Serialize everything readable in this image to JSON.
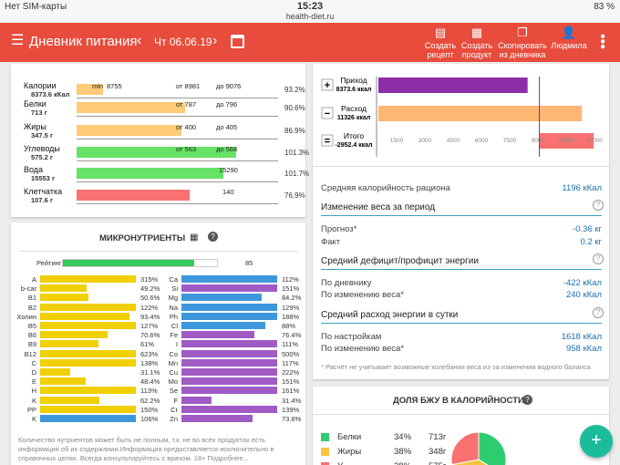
{
  "status": {
    "carrier": "Нет SIM-карты",
    "time": "15:23",
    "url": "health-diet.ru",
    "battery": "83 %"
  },
  "header": {
    "title": "Дневник питания",
    "date": "Чт 06.06.19",
    "actions": [
      "Создать рецепт",
      "Создать продукт",
      "Скопировать из дневника",
      "Людмила"
    ]
  },
  "nutrients": [
    {
      "name": "Калории",
      "value": "8373.6 кКал",
      "min": "min",
      "v1": "8755",
      "from": "от 8981",
      "to": "до 9076",
      "pct": "93.2%",
      "color": "#fdca77",
      "fill": 0.13
    },
    {
      "name": "Белки",
      "value": "713 г",
      "from": "от 787",
      "to": "до 796",
      "pct": "90.6%",
      "color": "#fdca77",
      "fill": 0.54
    },
    {
      "name": "Жиры",
      "value": "347.5 г",
      "from": "от 400",
      "to": "до 405",
      "pct": "86.9%",
      "color": "#fdca77",
      "fill": 0.52
    },
    {
      "name": "Углеводы",
      "value": "575.2 г",
      "from": "от 563",
      "to": "до 568",
      "pct": "101.3%",
      "color": "#66e366",
      "fill": 0.79
    },
    {
      "name": "Вода",
      "value": "15553 г",
      "v1": "15290",
      "pct": "101.7%",
      "color": "#66e366",
      "fill": 0.73
    },
    {
      "name": "Клетчатка",
      "value": "107.6 г",
      "v1": "140",
      "pct": "76.9%",
      "color": "#f97171",
      "fill": 0.56
    }
  ],
  "micro": {
    "title": "МИКРОНУТРИЕНТЫ",
    "rating_label": "Рейтинг",
    "rating": "85",
    "rating_fill": 0.85,
    "left": [
      {
        "n": "A",
        "p": "315%",
        "f": 1.0
      },
      {
        "n": "b-car",
        "p": "49.2%",
        "f": 0.49
      },
      {
        "n": "B1",
        "p": "50.6%",
        "f": 0.5
      },
      {
        "n": "B2",
        "p": "122%",
        "f": 1.0
      },
      {
        "n": "Холин",
        "p": "93.4%",
        "f": 0.93
      },
      {
        "n": "B5",
        "p": "127%",
        "f": 1.0
      },
      {
        "n": "B6",
        "p": "70.6%",
        "f": 0.7
      },
      {
        "n": "B9",
        "p": "61%",
        "f": 0.61
      },
      {
        "n": "B12",
        "p": "623%",
        "f": 1.0
      },
      {
        "n": "C",
        "p": "138%",
        "f": 1.0
      },
      {
        "n": "D",
        "p": "31.1%",
        "f": 0.31
      },
      {
        "n": "E",
        "p": "48.4%",
        "f": 0.48
      },
      {
        "n": "H",
        "p": "113%",
        "f": 1.0
      },
      {
        "n": "K",
        "p": "62.2%",
        "f": 0.62
      },
      {
        "n": "PP",
        "p": "150%",
        "f": 1.0
      },
      {
        "n": "K",
        "p": "106%",
        "f": 1.0,
        "blue": true
      }
    ],
    "right": [
      {
        "n": "Ca",
        "p": "112%",
        "f": 1.0,
        "c": "#3e97dc"
      },
      {
        "n": "Si",
        "p": "151%",
        "f": 1.0,
        "c": "#a05cc4"
      },
      {
        "n": "Mg",
        "p": "84.2%",
        "f": 0.84,
        "c": "#3e97dc"
      },
      {
        "n": "Na",
        "p": "129%",
        "f": 1.0,
        "c": "#3e97dc"
      },
      {
        "n": "Ph",
        "p": "188%",
        "f": 1.0,
        "c": "#3e97dc"
      },
      {
        "n": "Cl",
        "p": "88%",
        "f": 0.88,
        "c": "#3e97dc"
      },
      {
        "n": "Fe",
        "p": "76.4%",
        "f": 0.76,
        "c": "#a05cc4"
      },
      {
        "n": "I",
        "p": "111%",
        "f": 1.0,
        "c": "#a05cc4"
      },
      {
        "n": "Co",
        "p": "500%",
        "f": 1.0,
        "c": "#a05cc4"
      },
      {
        "n": "Mn",
        "p": "117%",
        "f": 1.0,
        "c": "#a05cc4"
      },
      {
        "n": "Cu",
        "p": "222%",
        "f": 1.0,
        "c": "#a05cc4"
      },
      {
        "n": "Mo",
        "p": "151%",
        "f": 1.0,
        "c": "#a05cc4"
      },
      {
        "n": "Se",
        "p": "161%",
        "f": 1.0,
        "c": "#a05cc4"
      },
      {
        "n": "F",
        "p": "31.4%",
        "f": 0.31,
        "c": "#a05cc4"
      },
      {
        "n": "Cr",
        "p": "139%",
        "f": 1.0,
        "c": "#a05cc4"
      },
      {
        "n": "Zn",
        "p": "73.8%",
        "f": 0.74,
        "c": "#a05cc4"
      }
    ],
    "note": "Количество нутриентов может быть не полным, т.к. не во всех продуктах есть информация об их содержании.Информация предоставляется исключительно в справочных целях. Всегда консультируйтесь с врачом. 18+ Подробнее..."
  },
  "balance": {
    "rows": [
      {
        "sign": "+",
        "label": "Приход",
        "value": "8373.6 ккал",
        "color": "#8e2da8",
        "fill": 0.66
      },
      {
        "sign": "−",
        "label": "Расход",
        "value": "11326 ккал",
        "color": "#fdb673",
        "fill": 0.9
      },
      {
        "sign": "=",
        "label": "Итого",
        "value": "-2952.4 ккал",
        "color": "#f97171",
        "fill": 0.24
      }
    ],
    "ticks": [
      "1500",
      "3000",
      "4500",
      "6000",
      "7500",
      "9000",
      "10500",
      "12000"
    ]
  },
  "stats": {
    "avg_label": "Средняя калорийность рациона",
    "avg_value": "1196 кКал",
    "weight_head": "Изменение веса за период",
    "forecast_label": "Прогноз*",
    "forecast_value": "-0.36 кг",
    "fact_label": "Факт",
    "fact_value": "0.2 кг",
    "deficit_head": "Средний дефицит/профицит энергии",
    "by_diary_label": "По дневнику",
    "by_diary_value": "-422 кКал",
    "by_weight_label": "По изменению веса*",
    "by_weight_value": "240 кКал",
    "expense_head": "Средний расход энергии в сутки",
    "by_settings_label": "По настройкам",
    "by_settings_value": "1618 кКал",
    "by_weight2_label": "По изменению веса*",
    "by_weight2_value": "958 кКал",
    "footnote": "* Расчёт не учитывает возможные колебания веса из-за изменения водного баланса"
  },
  "bju": {
    "title": "ДОЛЯ БЖУ В КАЛОРИЙНОСТИ",
    "rows": [
      {
        "label": "Белки",
        "pct": "34%",
        "grams": "713г",
        "color": "#2ecc71"
      },
      {
        "label": "Жиры",
        "pct": "38%",
        "grams": "348г",
        "color": "#f5c542"
      },
      {
        "label": "У",
        "pct": "28%",
        "grams": "575г",
        "color": "#f97171"
      }
    ]
  },
  "fab": "+"
}
